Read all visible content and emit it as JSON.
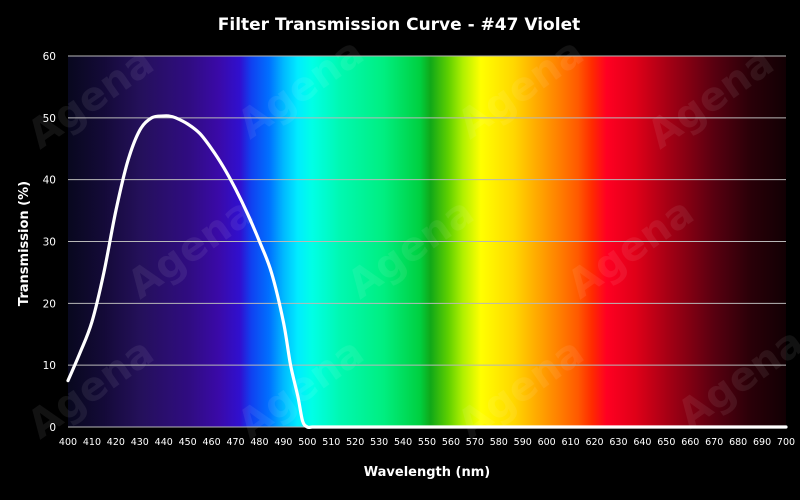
{
  "chart_data": {
    "type": "line",
    "title": "Filter Transmission Curve - #47 Violet",
    "xlabel": "Wavelength (nm)",
    "ylabel": "Transmission (%)",
    "xlim": [
      400,
      700
    ],
    "ylim": [
      0,
      60
    ],
    "x_ticks": [
      400,
      410,
      420,
      430,
      440,
      450,
      460,
      470,
      480,
      490,
      500,
      510,
      520,
      530,
      540,
      550,
      560,
      570,
      580,
      590,
      600,
      610,
      620,
      630,
      640,
      650,
      660,
      670,
      680,
      690,
      700
    ],
    "y_ticks": [
      0,
      10,
      20,
      30,
      40,
      50,
      60
    ],
    "grid": true,
    "legend": "none",
    "series": [
      {
        "x": [
          400,
          405,
          410,
          415,
          420,
          425,
          430,
          435,
          440,
          442,
          445,
          450,
          455,
          460,
          465,
          470,
          475,
          480,
          485,
          490,
          493,
          496,
          498,
          500,
          502,
          505,
          510,
          550,
          600,
          650,
          700
        ],
        "values": [
          7.5,
          12,
          17,
          25,
          35,
          43,
          48,
          50,
          50.3,
          50.3,
          50,
          49,
          47.5,
          45,
          42,
          38.5,
          34.5,
          30,
          25,
          17,
          10,
          5,
          1,
          0,
          0,
          0,
          0,
          0,
          0,
          0,
          0
        ]
      }
    ],
    "background": "visible light spectrum",
    "watermark": "Agena"
  }
}
